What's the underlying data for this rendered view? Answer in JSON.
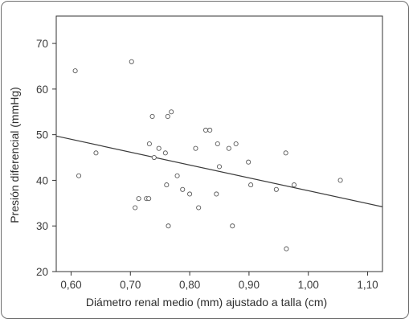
{
  "chart_data": {
    "type": "scatter",
    "title": "",
    "xlabel": "Diámetro renal medio (mm) ajustado a talla (cm)",
    "ylabel": "Presión diferencial (mmHg)",
    "xlim": [
      0.575,
      1.125
    ],
    "ylim": [
      20,
      76
    ],
    "xticks": [
      0.6,
      0.7,
      0.8,
      0.9,
      1.0,
      1.1
    ],
    "xtick_labels": [
      "0,60",
      "0,70",
      "0,80",
      "0,90",
      "1,00",
      "1,10"
    ],
    "yticks": [
      20,
      30,
      40,
      50,
      60,
      70
    ],
    "ytick_labels": [
      "20",
      "30",
      "40",
      "50",
      "60",
      "70"
    ],
    "grid": false,
    "marker": "open-circle",
    "colors": {
      "marker": "#5a5a5a",
      "line": "#3a3a3a",
      "axis": "#333333"
    },
    "regression_line": {
      "x": [
        0.575,
        1.125
      ],
      "y": [
        49.7,
        34.2
      ]
    },
    "points": [
      {
        "x": 0.607,
        "y": 64
      },
      {
        "x": 0.613,
        "y": 41
      },
      {
        "x": 0.642,
        "y": 46
      },
      {
        "x": 0.702,
        "y": 66
      },
      {
        "x": 0.708,
        "y": 34
      },
      {
        "x": 0.714,
        "y": 36
      },
      {
        "x": 0.727,
        "y": 36
      },
      {
        "x": 0.731,
        "y": 36
      },
      {
        "x": 0.732,
        "y": 48
      },
      {
        "x": 0.737,
        "y": 54
      },
      {
        "x": 0.74,
        "y": 45
      },
      {
        "x": 0.748,
        "y": 47
      },
      {
        "x": 0.759,
        "y": 46
      },
      {
        "x": 0.761,
        "y": 39
      },
      {
        "x": 0.763,
        "y": 54
      },
      {
        "x": 0.764,
        "y": 30
      },
      {
        "x": 0.769,
        "y": 55
      },
      {
        "x": 0.779,
        "y": 41
      },
      {
        "x": 0.788,
        "y": 38
      },
      {
        "x": 0.8,
        "y": 37
      },
      {
        "x": 0.81,
        "y": 47
      },
      {
        "x": 0.815,
        "y": 34
      },
      {
        "x": 0.827,
        "y": 51
      },
      {
        "x": 0.834,
        "y": 51
      },
      {
        "x": 0.845,
        "y": 37
      },
      {
        "x": 0.847,
        "y": 48
      },
      {
        "x": 0.85,
        "y": 43
      },
      {
        "x": 0.866,
        "y": 47
      },
      {
        "x": 0.872,
        "y": 30
      },
      {
        "x": 0.878,
        "y": 48
      },
      {
        "x": 0.899,
        "y": 44
      },
      {
        "x": 0.903,
        "y": 39
      },
      {
        "x": 0.946,
        "y": 38
      },
      {
        "x": 0.962,
        "y": 46
      },
      {
        "x": 0.963,
        "y": 25
      },
      {
        "x": 0.976,
        "y": 39
      },
      {
        "x": 1.054,
        "y": 40
      }
    ]
  }
}
